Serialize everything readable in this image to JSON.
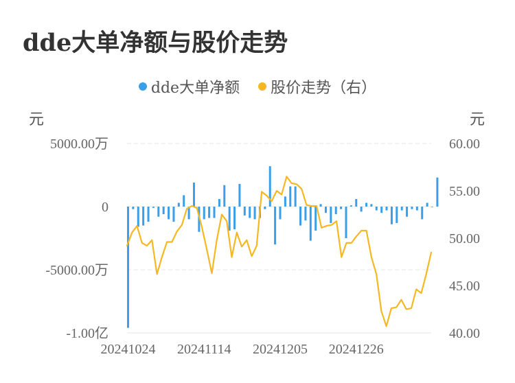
{
  "title": "dde大单净额与股价走势",
  "legend": [
    {
      "label": "dde大单净额",
      "color": "#3a9ee8"
    },
    {
      "label": "股价走势（右）",
      "color": "#f5b822"
    }
  ],
  "left_unit": "元",
  "right_unit": "元",
  "chart_data": {
    "type": "bar+line",
    "x_tick_labels": [
      "20241024",
      "20241114",
      "20241205",
      "20241226"
    ],
    "x_tick_indices": [
      0,
      15,
      30,
      45
    ],
    "left_axis": {
      "tick_labels": [
        "5000.00万",
        "0",
        "-5000.00万",
        "-1.00亿"
      ],
      "tick_values": [
        5000,
        0,
        -5000,
        -10000
      ],
      "range": [
        -10000,
        5000
      ],
      "unit_note": "万元"
    },
    "right_axis": {
      "tick_labels": [
        "60.00",
        "55.00",
        "50.00",
        "45.00",
        "40.00"
      ],
      "tick_values": [
        60,
        55,
        50,
        45,
        40
      ],
      "range": [
        40,
        60
      ]
    },
    "series": [
      {
        "name": "dde大单净额",
        "kind": "bar",
        "color": "#3a9ee8",
        "values": [
          -9600,
          -200,
          -1600,
          -1500,
          -1200,
          -100,
          -800,
          -600,
          -1000,
          -1200,
          300,
          900,
          -1000,
          1900,
          -2000,
          -1000,
          -900,
          -900,
          600,
          1700,
          -1900,
          -1800,
          1800,
          -700,
          -900,
          -1000,
          -900,
          -200,
          3200,
          -3000,
          -1000,
          800,
          1600,
          1600,
          -1500,
          -1100,
          -2700,
          -1900,
          200,
          -500,
          -1300,
          -600,
          -200,
          -2500,
          100,
          600,
          -400,
          300,
          200,
          -300,
          -500,
          -300,
          -1400,
          -1300,
          -300,
          -800,
          -200,
          -300,
          -1000,
          300,
          0,
          2300
        ],
        "grid_bars": 60
      },
      {
        "name": "股价走势（右）",
        "kind": "line",
        "color": "#f5b822",
        "values": [
          49.2,
          50.6,
          51.3,
          49.5,
          49.2,
          49.8,
          46.2,
          48.0,
          49.6,
          49.6,
          50.7,
          51.4,
          53.1,
          53.4,
          53.2,
          51.2,
          48.8,
          46.3,
          49.8,
          52.5,
          51.8,
          48.0,
          50.6,
          49.1,
          49.8,
          48.1,
          49.2,
          54.9,
          54.5,
          53.9,
          55.0,
          54.6,
          56.5,
          55.8,
          55.7,
          55.2,
          53.5,
          53.4,
          53.4,
          51.1,
          51.3,
          51.4,
          51.8,
          48.0,
          49.5,
          49.5,
          50.2,
          50.8,
          50.8,
          48.0,
          46.2,
          42.3,
          40.7,
          42.6,
          42.7,
          43.5,
          42.5,
          42.6,
          44.6,
          44.2,
          46.2,
          48.5
        ],
        "points": 62
      }
    ],
    "grid": "horizontal-dashed",
    "legend_position": "top-center"
  }
}
